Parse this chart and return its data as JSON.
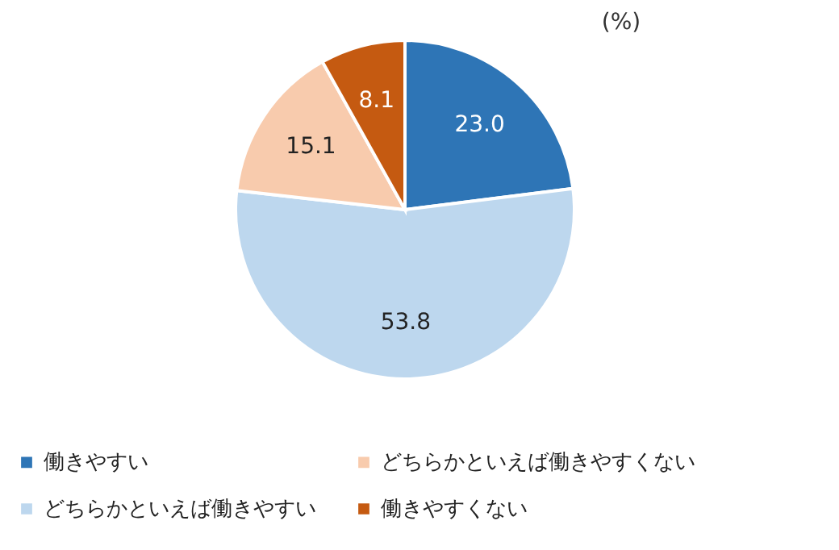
{
  "chart_data": {
    "type": "pie",
    "categories": [
      "働きやすい",
      "どちらかといえば働きやすい",
      "どちらかといえば働きやすくない",
      "働きやすくない"
    ],
    "values": [
      23.0,
      53.8,
      15.1,
      8.1
    ],
    "colors": [
      "#2e75b6",
      "#bdd7ee",
      "#f8cbad",
      "#c55a11"
    ],
    "value_labels": [
      "23.0",
      "53.8",
      "15.1",
      "8.1"
    ],
    "annotations": [
      "(%)"
    ],
    "legend": "bottom"
  }
}
